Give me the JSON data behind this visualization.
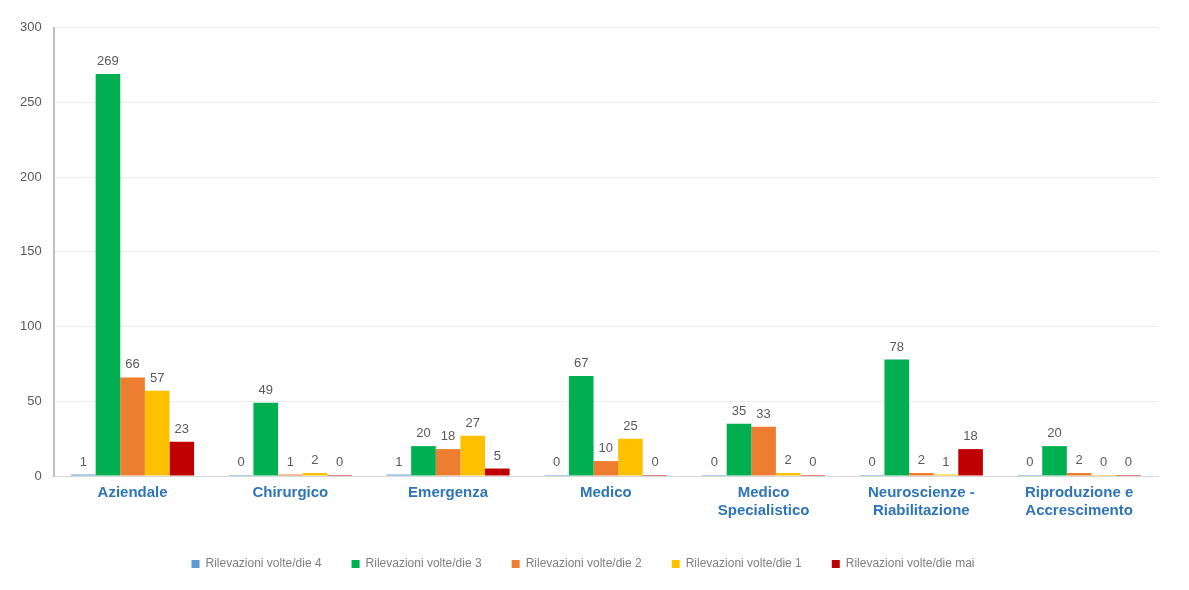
{
  "chart_data": {
    "type": "bar",
    "categories": [
      "Aziendale",
      "Chirurgico",
      "Emergenza",
      "Medico",
      "Medico Specialistico",
      "Neuroscienze - Riabilitazione",
      "Riproduzione e Accrescimento"
    ],
    "series": [
      {
        "name": "Rilevazioni volte/die 4",
        "color": "#5b9bd5",
        "values": [
          1,
          0,
          1,
          0,
          0,
          0,
          0
        ]
      },
      {
        "name": "Rilevazioni volte/die 3",
        "color": "#00b050",
        "values": [
          269,
          49,
          20,
          67,
          35,
          78,
          20
        ]
      },
      {
        "name": "Rilevazioni volte/die 2",
        "color": "#ed7d31",
        "values": [
          66,
          1,
          18,
          10,
          33,
          2,
          2
        ]
      },
      {
        "name": "Rilevazioni volte/die 1",
        "color": "#ffc000",
        "values": [
          57,
          2,
          27,
          25,
          2,
          1,
          0
        ]
      },
      {
        "name": "Rilevazioni volte/die mai",
        "color": "#c00000",
        "values": [
          23,
          0,
          5,
          0,
          0,
          18,
          0
        ]
      }
    ],
    "ylim": [
      0,
      300
    ],
    "yticks": [
      0,
      50,
      100,
      150,
      200,
      250,
      300
    ],
    "grid": "y",
    "legend": "bottom",
    "data_labels": true
  }
}
